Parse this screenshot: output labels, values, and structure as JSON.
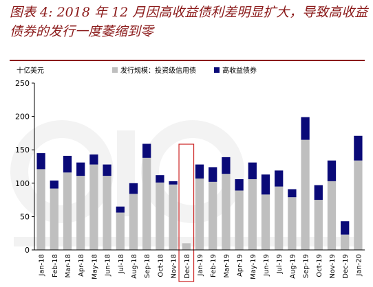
{
  "title": "图表 4: 2018 年 12 月因高收益债利差明显扩大，导致高收益债券的发行一度萎缩到零",
  "colors": {
    "title": "#8b1a1a",
    "rule": "#8b1a1a",
    "investment_grade": "#bfbfbf",
    "high_yield": "#0a0a78",
    "highlight_box": "#cc2222"
  },
  "chart_data": {
    "type": "bar",
    "stacked": true,
    "unit_label": "十亿美元",
    "ylim": [
      0,
      250
    ],
    "yticks": [
      0,
      50,
      100,
      150,
      200,
      250
    ],
    "legend_position": "top",
    "grid": false,
    "categories": [
      "Jan-18",
      "Feb-18",
      "Mar-18",
      "Apr-18",
      "May-18",
      "Jun-18",
      "Jul-18",
      "Aug-18",
      "Sep-18",
      "Oct-18",
      "Nov-18",
      "Dec-18",
      "Jan-19",
      "Feb-19",
      "Mar-19",
      "Apr-19",
      "May-19",
      "Jun-19",
      "Jul-19",
      "Aug-19",
      "Sep-19",
      "Oct-19",
      "Nov-19",
      "Dec-19",
      "Jan-20"
    ],
    "highlight_category": "Dec-18",
    "series": [
      {
        "name": "发行规模：投资级信用债",
        "values": [
          121,
          92,
          116,
          111,
          128,
          111,
          56,
          84,
          138,
          101,
          98,
          10,
          107,
          102,
          114,
          89,
          106,
          83,
          95,
          79,
          165,
          75,
          103,
          23,
          134
        ]
      },
      {
        "name": "高收益债券",
        "values": [
          24,
          12,
          25,
          20,
          15,
          17,
          9,
          16,
          21,
          11,
          5,
          0,
          21,
          22,
          25,
          17,
          25,
          30,
          24,
          12,
          34,
          22,
          31,
          20,
          37
        ]
      }
    ]
  }
}
